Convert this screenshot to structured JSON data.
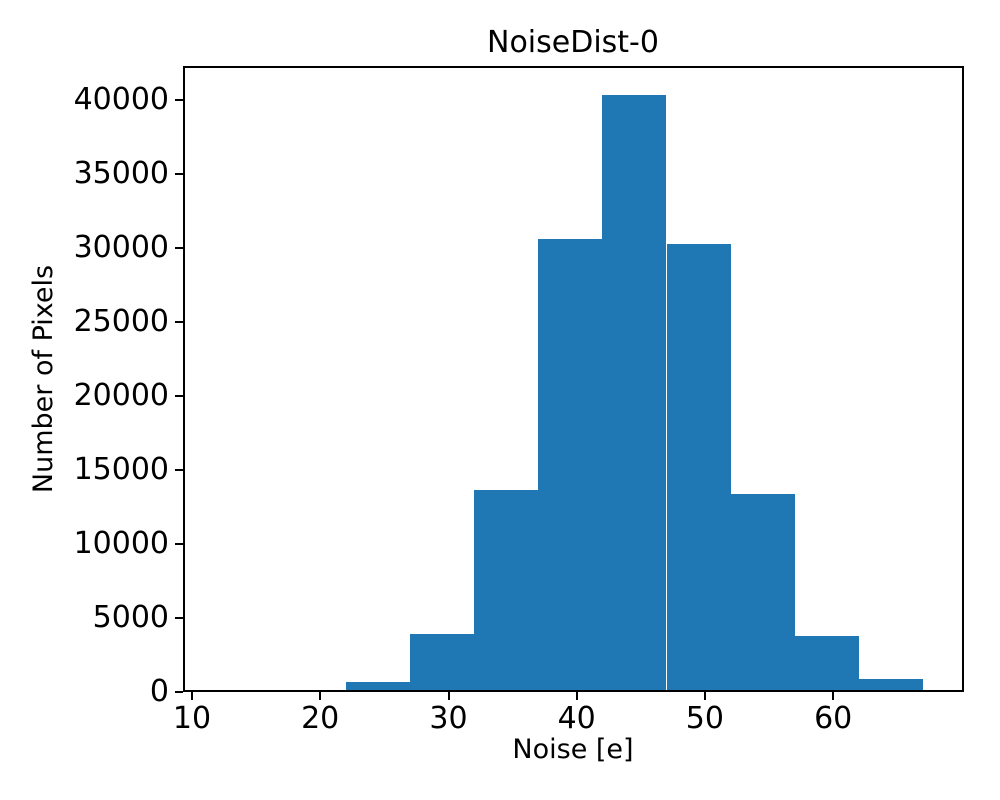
{
  "figure": {
    "title": "NoiseDist-0",
    "xlabel": "Noise [e]",
    "ylabel": "Number of Pixels",
    "background_color": "#ffffff",
    "spine_color": "#000000"
  },
  "chart_data": {
    "type": "bar",
    "subtype": "histogram",
    "title": "NoiseDist-0",
    "xlabel": "Noise [e]",
    "ylabel": "Number of Pixels",
    "bin_edges": [
      17,
      22,
      27,
      32,
      37,
      42,
      47,
      52,
      57,
      62,
      67
    ],
    "counts": [
      150,
      700,
      3950,
      13650,
      30650,
      40330,
      30290,
      13370,
      3770,
      860
    ],
    "bar_color": "#1f77b4",
    "xticks": [
      10,
      20,
      30,
      40,
      50,
      60
    ],
    "yticks": [
      0,
      5000,
      10000,
      15000,
      20000,
      25000,
      30000,
      35000,
      40000
    ],
    "xlim": [
      9.3,
      70.2
    ],
    "ylim": [
      0,
      42320
    ],
    "grid": false,
    "legend": null
  }
}
